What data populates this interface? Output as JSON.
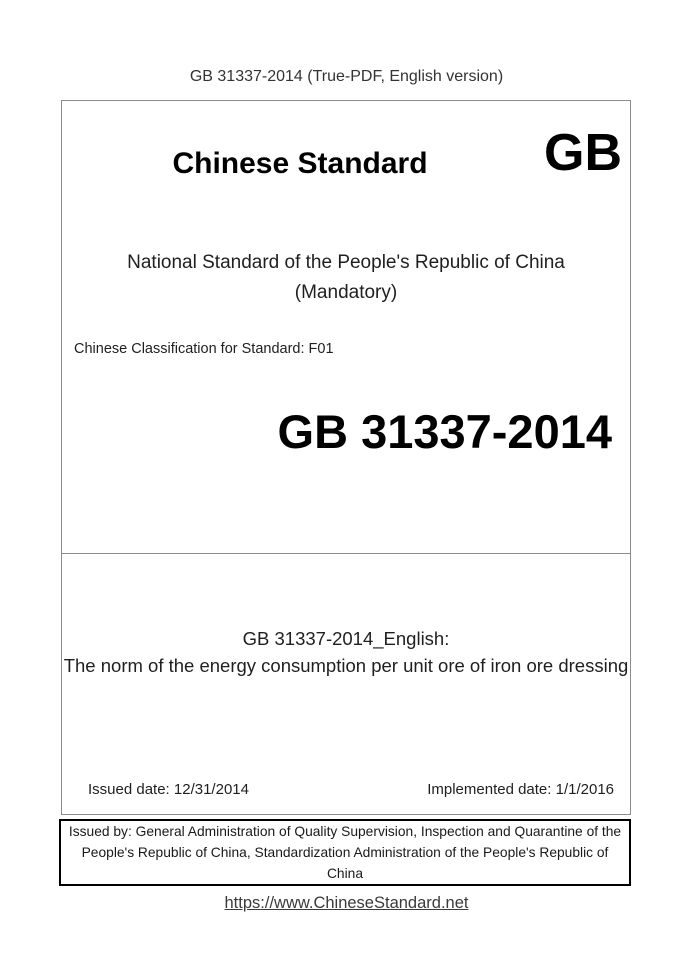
{
  "page": {
    "header": "GB 31337-2014 (True-PDF, English version)",
    "footer_link": "https://www.ChineseStandard.net"
  },
  "cover": {
    "brand_title": "Chinese Standard",
    "brand_logo": "GB",
    "national_line1": "National Standard of the People's Republic of China",
    "national_line2": "(Mandatory)",
    "classification": "Chinese Classification for Standard: F01",
    "standard_number": "GB 31337-2014",
    "english_label": "GB 31337-2014_English:",
    "english_title": "The norm of the energy consumption per unit ore of iron ore dressing",
    "issued_date": "Issued date: 12/31/2014",
    "implemented_date": "Implemented date: 1/1/2016"
  },
  "issuer": {
    "text": "Issued by: General Administration of Quality Supervision, Inspection and Quarantine of the People's Republic of China, Standardization Administration of the People's Republic of China"
  },
  "colors": {
    "text": "#1f1f1f",
    "box_border_gray": "#8c8c8c",
    "box_border_black": "#000000",
    "background": "#ffffff"
  }
}
